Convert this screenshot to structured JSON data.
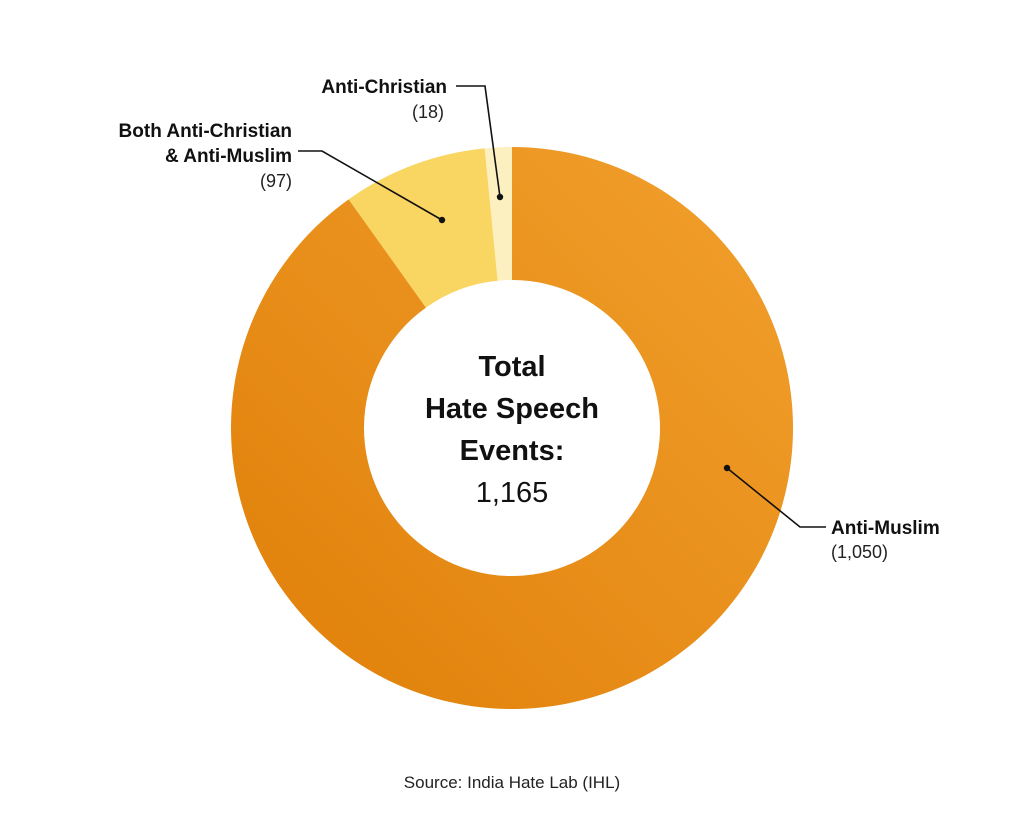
{
  "chart_data": {
    "type": "pie",
    "variant": "donut",
    "center": {
      "lines": [
        "Total",
        "Hate Speech",
        "Events:"
      ],
      "value": "1,165"
    },
    "slices": [
      {
        "label_lines": [
          "Anti-Muslim"
        ],
        "count_label": "(1,050)",
        "value": 1050,
        "color": "#ea8f1c"
      },
      {
        "label_lines": [
          "Both Anti-Christian",
          "& Anti-Muslim"
        ],
        "count_label": "(97)",
        "value": 97,
        "color": "#f9d562"
      },
      {
        "label_lines": [
          "Anti-Christian"
        ],
        "count_label": "(18)",
        "value": 18,
        "color": "#fcefc0"
      }
    ],
    "source": "Source: India Hate Lab (IHL)"
  }
}
